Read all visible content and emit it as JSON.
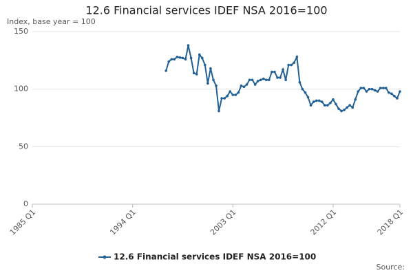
{
  "chart_data": {
    "type": "line",
    "title": "12.6 Financial services IDEF NSA 2016=100",
    "subtitle": "Index, base year = 100",
    "source": "Source:",
    "x": [
      1997,
      1997.25,
      1997.5,
      1997.75,
      1998,
      1998.25,
      1998.5,
      1998.75,
      1999,
      1999.25,
      1999.5,
      1999.75,
      2000,
      2000.25,
      2000.5,
      2000.75,
      2001,
      2001.25,
      2001.5,
      2001.75,
      2002,
      2002.25,
      2002.5,
      2002.75,
      2003,
      2003.25,
      2003.5,
      2003.75,
      2004,
      2004.25,
      2004.5,
      2004.75,
      2005,
      2005.25,
      2005.5,
      2005.75,
      2006,
      2006.25,
      2006.5,
      2006.75,
      2007,
      2007.25,
      2007.5,
      2007.75,
      2008,
      2008.25,
      2008.5,
      2008.75,
      2009,
      2009.25,
      2009.5,
      2009.75,
      2010,
      2010.25,
      2010.5,
      2010.75,
      2011,
      2011.25,
      2011.5,
      2011.75,
      2012,
      2012.25,
      2012.5,
      2012.75,
      2013,
      2013.25,
      2013.5,
      2013.75,
      2014,
      2014.25,
      2014.5,
      2014.75,
      2015,
      2015.25,
      2015.5,
      2015.75,
      2016,
      2016.25,
      2016.5,
      2016.75,
      2017,
      2017.25,
      2017.5,
      2017.75,
      2018
    ],
    "series": [
      {
        "name": "12.6 Financial services IDEF NSA 2016=100",
        "color": "#206095",
        "values": [
          116,
          124,
          126,
          126,
          128,
          127.5,
          127,
          126,
          138,
          127,
          114,
          113,
          130,
          127,
          121,
          105,
          118,
          108,
          103,
          81,
          92,
          92,
          94,
          98,
          95,
          95,
          97,
          103,
          102,
          104,
          108,
          108,
          104,
          107,
          108,
          109,
          108,
          108,
          115,
          115,
          110,
          110,
          117,
          108,
          121,
          121,
          123,
          128,
          106,
          100,
          97,
          93,
          86,
          89,
          90,
          90,
          89,
          86,
          86,
          88,
          91,
          87,
          83,
          81,
          82,
          84,
          86,
          84,
          91,
          98,
          101,
          101,
          98,
          100,
          100,
          99,
          98,
          101,
          101,
          101,
          97,
          96,
          94,
          92,
          98
        ]
      }
    ],
    "xlim": [
      1985,
      2018
    ],
    "xticks": [
      {
        "value": 1985,
        "label": "1985 Q1"
      },
      {
        "value": 1994,
        "label": "1994 Q1"
      },
      {
        "value": 2003,
        "label": "2003 Q1"
      },
      {
        "value": 2012,
        "label": "2012 Q1"
      },
      {
        "value": 2018,
        "label": "2018 Q1"
      }
    ],
    "ylim": [
      0,
      150
    ],
    "yticks": [
      0,
      50,
      100,
      150
    ],
    "grid": true,
    "legend": "bottom"
  }
}
